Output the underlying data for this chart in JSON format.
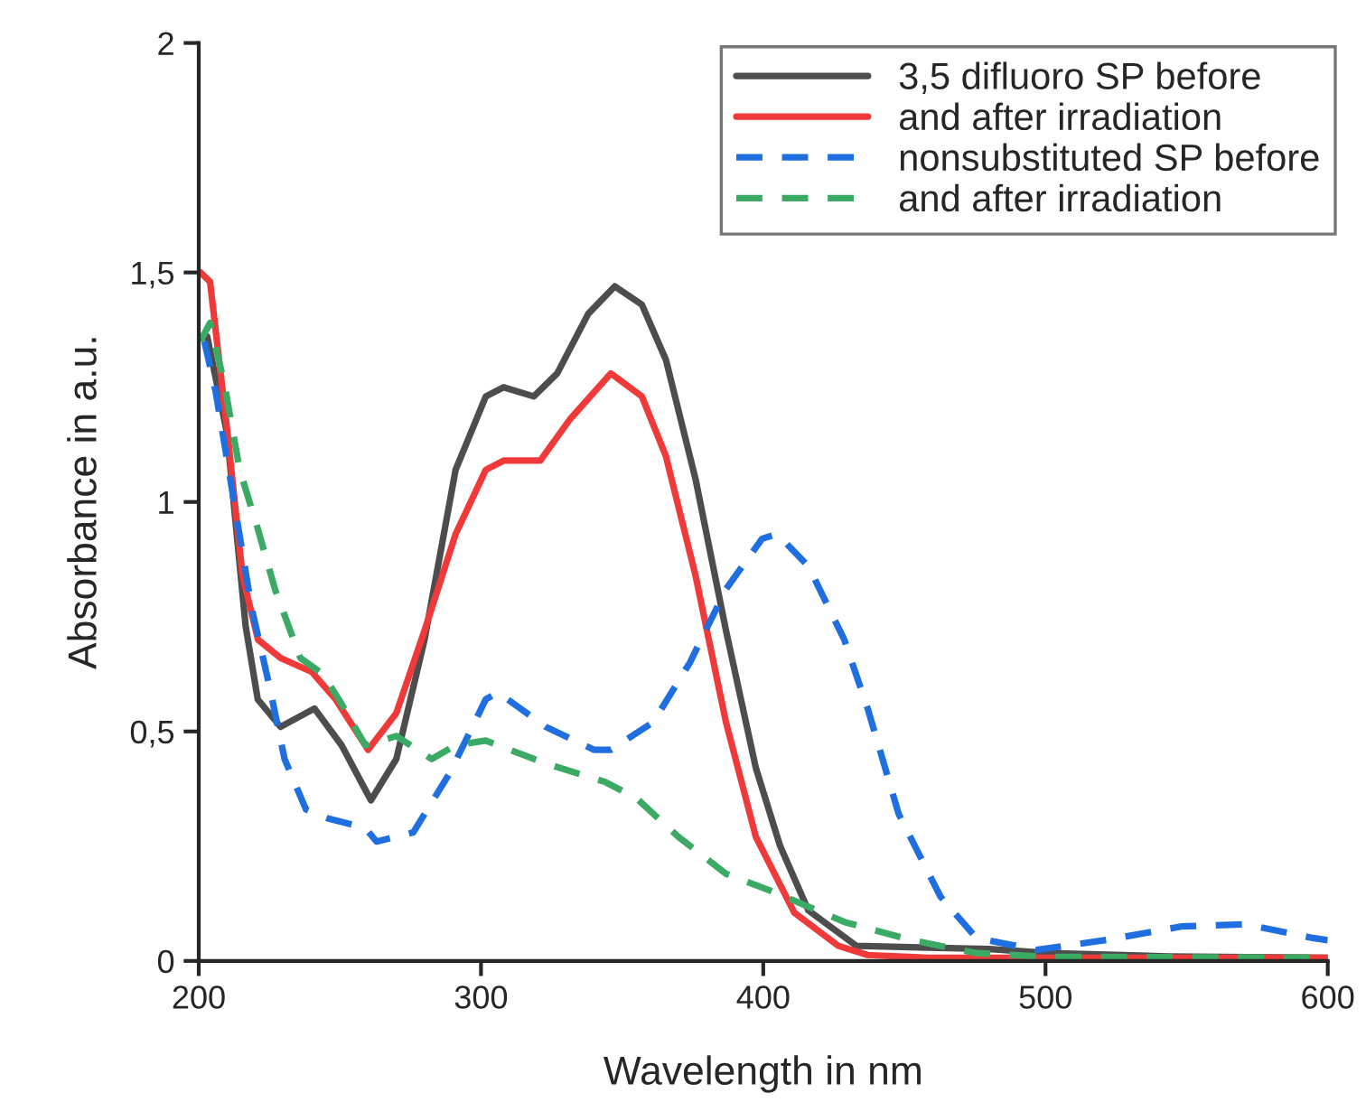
{
  "chart_data": {
    "type": "line",
    "xlabel": "Wavelength in nm",
    "ylabel": "Absorbance in a.u.",
    "xlim": [
      200,
      600
    ],
    "xticks": [
      200,
      300,
      400,
      500,
      600
    ],
    "ylim": [
      0,
      2
    ],
    "yticks": [
      0,
      {
        "value": 0.5,
        "label": "0,5"
      },
      1,
      {
        "value": 1.5,
        "label": "1,5"
      },
      2
    ],
    "grid": false,
    "legend": "top right",
    "marker": "none",
    "series": [
      {
        "name": "3,5 difluoro SP before",
        "color": "#4d4d4d",
        "line_style": "solid",
        "x": [
          203,
          210,
          216.6,
          220.9,
          229,
          241,
          250.6,
          261,
          270,
          280,
          291,
          301.7,
          308,
          318.7,
          327,
          338,
          347.4,
          357,
          365.5,
          376,
          386.8,
          397.4,
          406,
          416,
          433,
          458.5,
          480,
          501,
          543.6,
          600
        ],
        "values": [
          1.36,
          1.15,
          0.73,
          0.57,
          0.51,
          0.55,
          0.47,
          0.35,
          0.44,
          0.7,
          1.07,
          1.23,
          1.25,
          1.23,
          1.28,
          1.41,
          1.47,
          1.43,
          1.31,
          1.05,
          0.72,
          0.42,
          0.25,
          0.11,
          0.033,
          0.029,
          0.026,
          0.017,
          0.01,
          0.007
        ]
      },
      {
        "name": "and after irradiation",
        "color": "#f03a3a",
        "line_style": "solid",
        "x": [
          200.6,
          204,
          210,
          215.5,
          221,
          229,
          240,
          248.5,
          260,
          270,
          280,
          291,
          301.7,
          308,
          321,
          331.5,
          346,
          357,
          365.5,
          376,
          386.8,
          397.4,
          411,
          426.6,
          437,
          458.5,
          501,
          600
        ],
        "values": [
          1.5,
          1.48,
          1.16,
          0.84,
          0.7,
          0.66,
          0.63,
          0.57,
          0.46,
          0.54,
          0.72,
          0.93,
          1.07,
          1.09,
          1.09,
          1.18,
          1.28,
          1.23,
          1.1,
          0.84,
          0.52,
          0.27,
          0.105,
          0.033,
          0.013,
          0.007,
          0.007,
          0.007
        ]
      },
      {
        "name": "nonsubstituted SP before",
        "color": "#1f6fe0",
        "line_style": "dashed",
        "x": [
          202,
          206,
          212,
          218.7,
          225,
          230.4,
          238,
          246,
          259,
          263,
          276,
          289,
          301.7,
          306,
          323,
          340,
          346,
          361,
          374,
          386.8,
          399.6,
          405,
          416,
          428.7,
          437,
          448,
          462.8,
          475.5,
          496.8,
          522,
          548,
          571,
          594.7,
          600
        ],
        "values": [
          1.35,
          1.24,
          1.02,
          0.77,
          0.6,
          0.44,
          0.33,
          0.31,
          0.29,
          0.26,
          0.28,
          0.41,
          0.57,
          0.585,
          0.51,
          0.46,
          0.46,
          0.52,
          0.65,
          0.81,
          0.92,
          0.93,
          0.86,
          0.7,
          0.55,
          0.32,
          0.14,
          0.05,
          0.024,
          0.046,
          0.075,
          0.08,
          0.05,
          0.045
        ]
      },
      {
        "name": "and after irradiation",
        "color": "#3aaa64",
        "line_style": "dashed",
        "x": [
          200.6,
          204,
          209,
          214.5,
          221,
          227,
          236,
          244,
          250.6,
          259,
          270,
          282.5,
          291,
          301.7,
          323,
          344,
          355,
          370,
          386.8,
          403.8,
          428.7,
          452,
          475.5,
          501,
          600
        ],
        "values": [
          1.35,
          1.39,
          1.26,
          1.07,
          0.94,
          0.81,
          0.66,
          0.625,
          0.56,
          0.47,
          0.49,
          0.44,
          0.47,
          0.48,
          0.43,
          0.39,
          0.355,
          0.27,
          0.19,
          0.15,
          0.085,
          0.046,
          0.017,
          0.009,
          0.007
        ]
      }
    ]
  }
}
